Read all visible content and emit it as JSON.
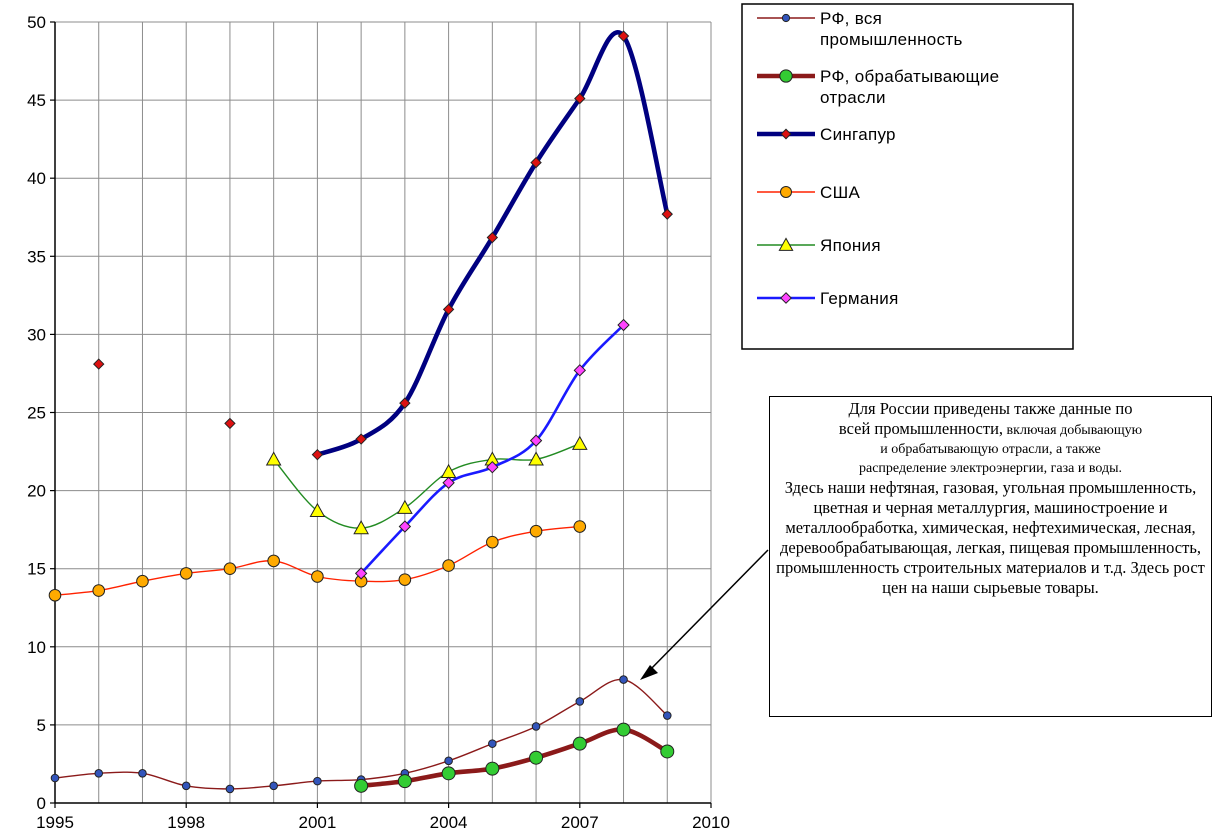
{
  "chart_data": {
    "type": "line",
    "xlim": [
      1995,
      2010
    ],
    "ylim": [
      0,
      50
    ],
    "x_ticks": [
      1995,
      1998,
      2001,
      2004,
      2007,
      2010
    ],
    "y_ticks": [
      0,
      5,
      10,
      15,
      20,
      25,
      30,
      35,
      40,
      45,
      50
    ],
    "grid": true,
    "legend_position": "top-right",
    "series": [
      {
        "name": "РФ, вся промышленность",
        "color": "#8B1A1A",
        "marker": "circle",
        "marker_color": "#3355bb",
        "width": "thin",
        "x": [
          1995,
          1996,
          1997,
          1998,
          1999,
          2000,
          2001,
          2002,
          2003,
          2004,
          2005,
          2006,
          2007,
          2008,
          2009
        ],
        "y": [
          1.6,
          1.9,
          1.9,
          1.1,
          0.9,
          1.1,
          1.4,
          1.5,
          1.9,
          2.7,
          3.8,
          4.9,
          6.5,
          7.9,
          5.6
        ]
      },
      {
        "name": "РФ, обрабатывающие отрасли",
        "color": "#8B1A1A",
        "marker": "circle",
        "marker_color": "#33cc33",
        "width": "thick",
        "x": [
          2002,
          2003,
          2004,
          2005,
          2006,
          2007,
          2008,
          2009
        ],
        "y": [
          1.1,
          1.4,
          1.9,
          2.2,
          2.9,
          3.8,
          4.7,
          3.3
        ]
      },
      {
        "name": "Сингапур",
        "color": "#000080",
        "marker": "diamond",
        "marker_color": "#dd1111",
        "width": "thick",
        "x": [
          1996,
          1999,
          2001,
          2002,
          2003,
          2004,
          2005,
          2006,
          2007,
          2008,
          2009
        ],
        "y": [
          28.1,
          24.3,
          22.3,
          23.3,
          25.6,
          31.6,
          36.2,
          41.0,
          45.1,
          49.1,
          37.7
        ]
      },
      {
        "name": "США",
        "color": "#ff2200",
        "marker": "circle",
        "marker_color": "#ffaa00",
        "width": "thin",
        "x": [
          1995,
          1996,
          1997,
          1998,
          1999,
          2000,
          2001,
          2002,
          2003,
          2004,
          2005,
          2006,
          2007
        ],
        "y": [
          13.3,
          13.6,
          14.2,
          14.7,
          15.0,
          15.5,
          14.5,
          14.2,
          14.3,
          15.2,
          16.7,
          17.4,
          17.7
        ]
      },
      {
        "name": "Япония",
        "color": "#228B22",
        "marker": "triangle",
        "marker_color": "#ffff00",
        "width": "thin",
        "x": [
          2000,
          2001,
          2002,
          2003,
          2004,
          2005,
          2006,
          2007
        ],
        "y": [
          22.0,
          18.7,
          17.6,
          18.9,
          21.2,
          22.0,
          22.0,
          23.0
        ]
      },
      {
        "name": "Германия",
        "color": "#1a1aff",
        "marker": "square",
        "marker_color": "#ff44ff",
        "width": "medium",
        "x": [
          2002,
          2003,
          2004,
          2005,
          2006,
          2007,
          2008
        ],
        "y": [
          14.7,
          17.7,
          20.5,
          21.5,
          23.2,
          27.7,
          30.6
        ]
      }
    ],
    "legend_lines": [
      [
        "РФ, вся",
        "промышленность"
      ],
      [
        "РФ, обрабатывающие",
        "отрасли"
      ],
      [
        "Сингапур"
      ],
      [
        "США"
      ],
      [
        "Япония"
      ],
      [
        "Германия"
      ]
    ]
  },
  "annotation": {
    "line1": "Для России приведены также данные по",
    "line2a": "всей промышленности,",
    "line2b": " включая добывающую",
    "line3": "и обрабатывающую отрасли, а также",
    "line4": "распределение электроэнергии, газа и воды.",
    "line5": "Здесь наши нефтяная, газовая, угольная промышленность, цветная и черная металлургия, машиностроение и металлообработка, химическая, нефтехимическая, лесная, деревообрабатывающая,  легкая, пищевая промышленность, промышленность строительных материалов и т.д. Здесь рост цен на наши сырьевые товары."
  }
}
